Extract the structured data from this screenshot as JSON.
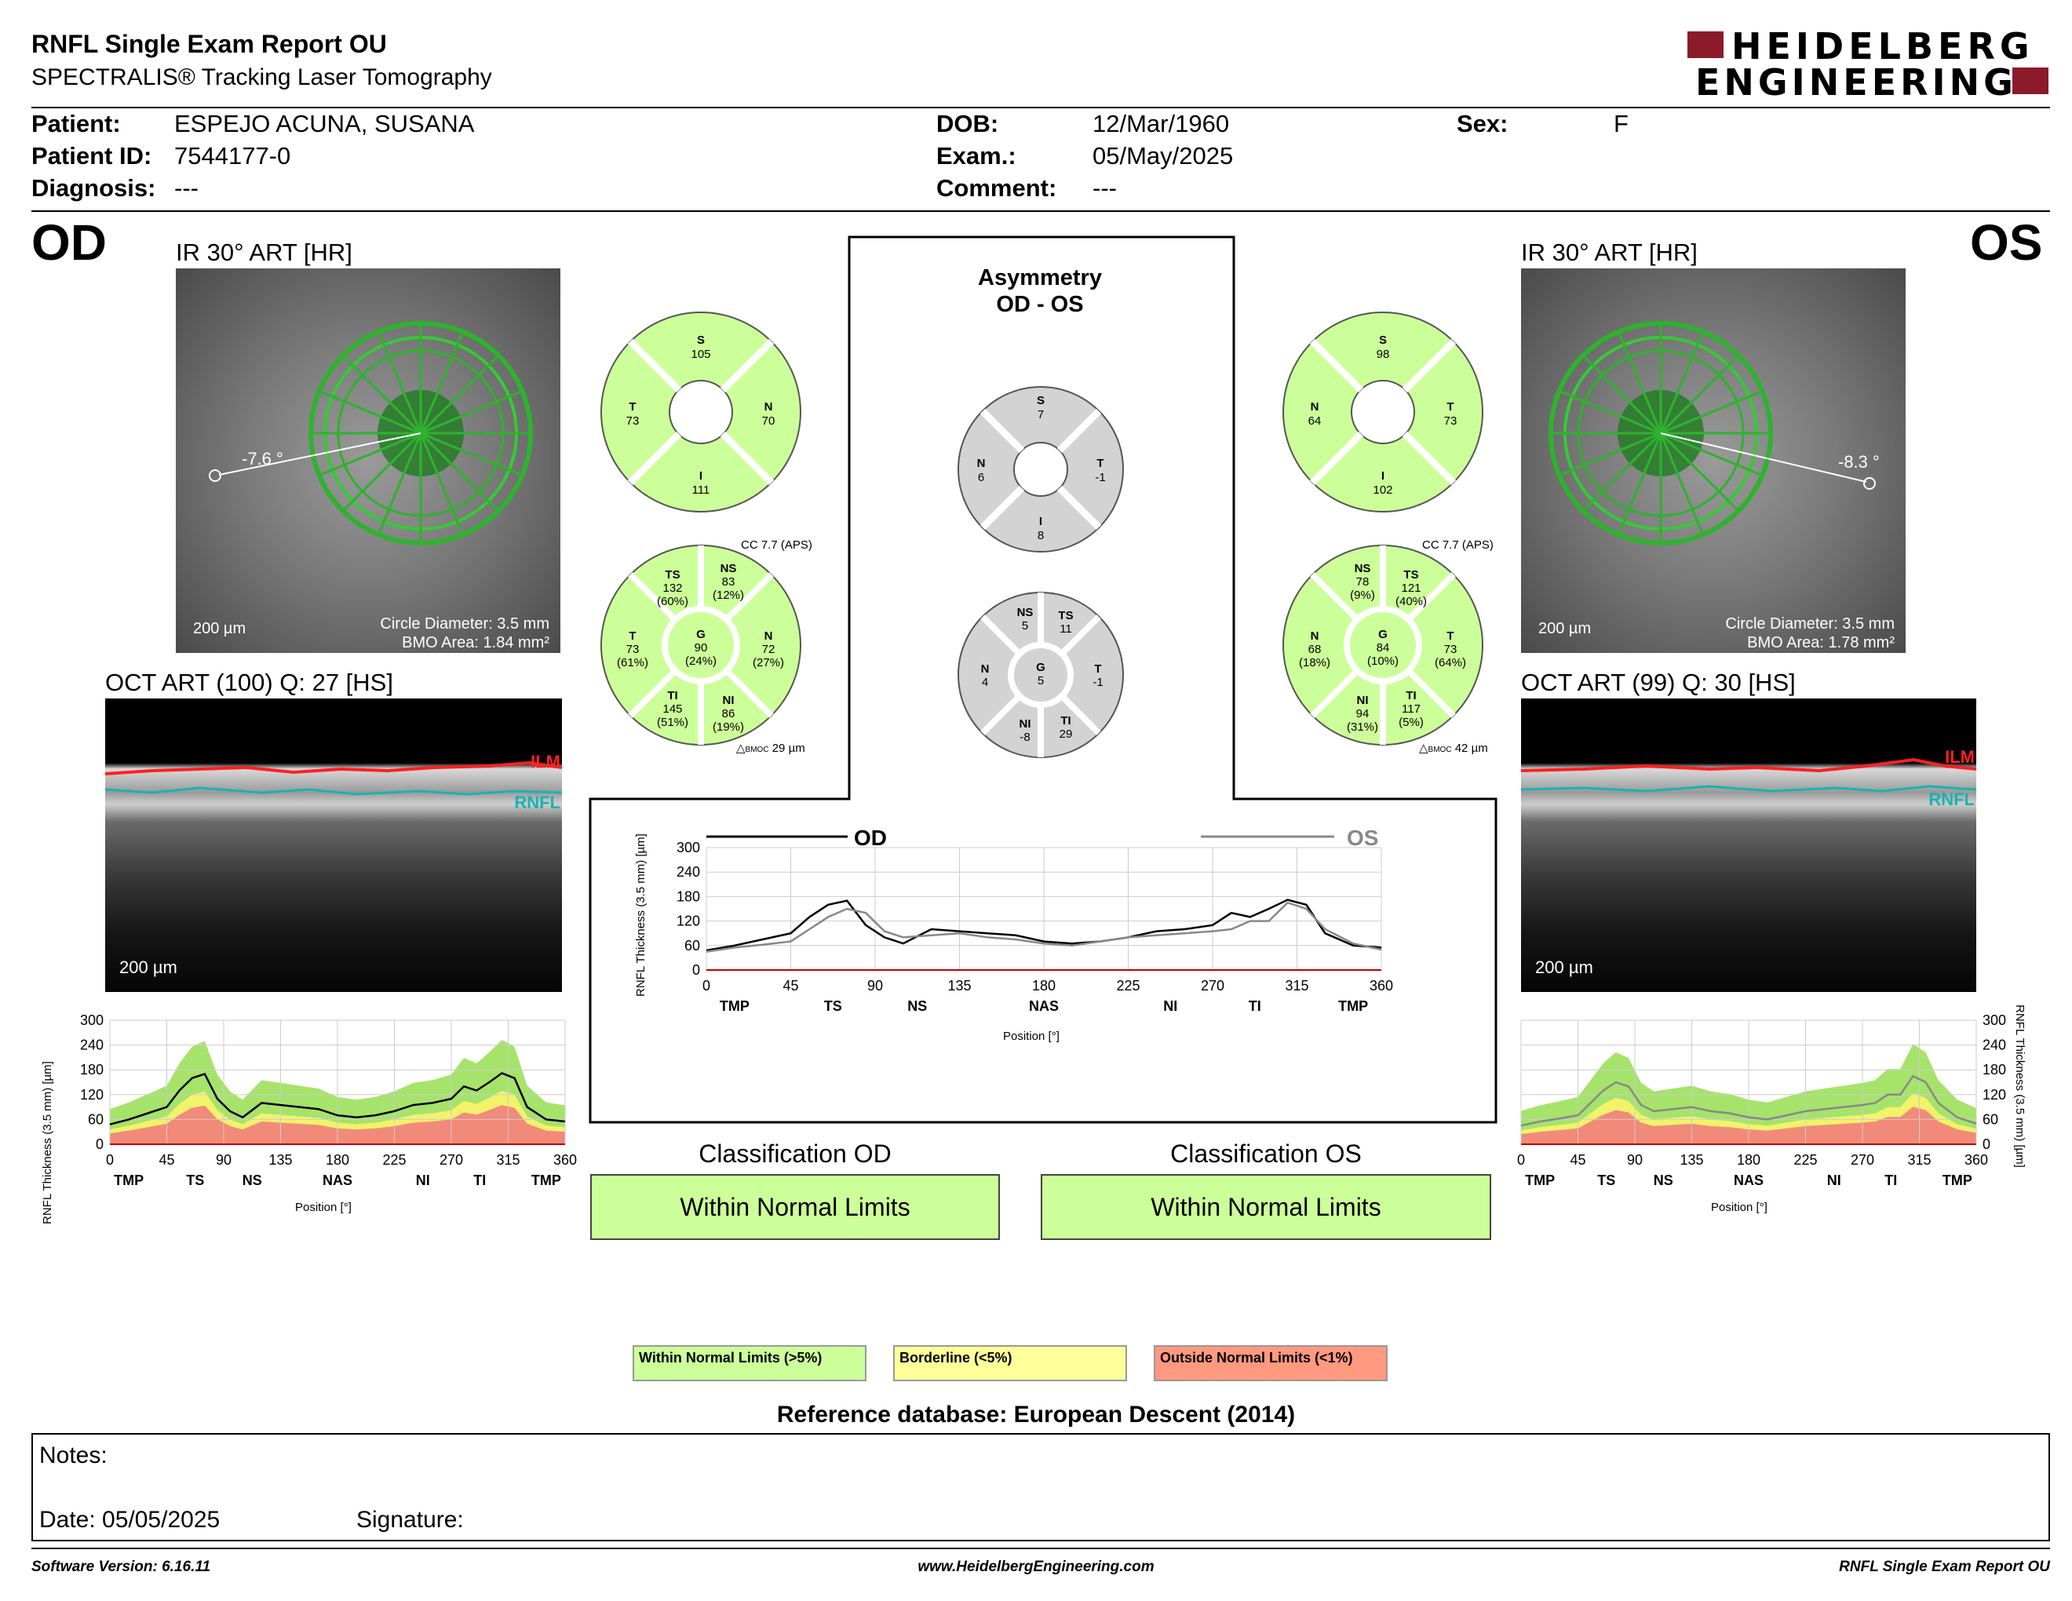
{
  "header": {
    "title": "RNFL Single Exam Report OU",
    "subtitle": "SPECTRALIS® Tracking Laser Tomography",
    "brand_line1": "HEIDELBERG",
    "brand_line2": "ENGINEERING",
    "brand_color": "#8b1a2b"
  },
  "patient": {
    "patient_label": "Patient:",
    "patient_value": "ESPEJO ACUNA, SUSANA",
    "id_label": "Patient ID:",
    "id_value": "7544177-0",
    "diag_label": "Diagnosis:",
    "diag_value": "---",
    "dob_label": "DOB:",
    "dob_value": "12/Mar/1960",
    "exam_label": "Exam.:",
    "exam_value": "05/May/2025",
    "comment_label": "Comment:",
    "comment_value": "---",
    "sex_label": "Sex:",
    "sex_value": "F"
  },
  "od": {
    "eye": "OD",
    "ir_label": "IR 30° ART [HR]",
    "angle": "-7.6 °",
    "scale": "200 µm",
    "circle_diameter": "Circle Diameter: 3.5 mm",
    "bmo_area": "BMO Area: 1.84 mm²",
    "oct_label": "OCT ART (100) Q: 27 [HS]",
    "oct_scale": "200 µm",
    "ilm": "ILM",
    "rnfl": "RNFL",
    "quad": {
      "S": "105",
      "T": "73",
      "N": "70",
      "I": "111"
    },
    "cc": "CC 7.7 (APS)",
    "sector": {
      "TS": [
        "132",
        "(60%)"
      ],
      "NS": [
        "83",
        "(12%)"
      ],
      "T": [
        "73",
        "(61%)"
      ],
      "G": [
        "90",
        "(24%)"
      ],
      "N": [
        "72",
        "(27%)"
      ],
      "TI": [
        "145",
        "(51%)"
      ],
      "NI": [
        "86",
        "(19%)"
      ]
    },
    "bmoc": "29 µm",
    "class_title": "Classification OD",
    "class_value": "Within Normal Limits"
  },
  "os": {
    "eye": "OS",
    "ir_label": "IR 30° ART [HR]",
    "angle": "-8.3 °",
    "scale": "200 µm",
    "circle_diameter": "Circle Diameter: 3.5 mm",
    "bmo_area": "BMO Area: 1.78 mm²",
    "oct_label": "OCT ART (99) Q: 30 [HS]",
    "oct_scale": "200 µm",
    "ilm": "ILM",
    "rnfl": "RNFL",
    "quad": {
      "S": "98",
      "N": "64",
      "T": "73",
      "I": "102"
    },
    "cc": "CC 7.7 (APS)",
    "sector": {
      "NS": [
        "78",
        "(9%)"
      ],
      "TS": [
        "121",
        "(40%)"
      ],
      "N": [
        "68",
        "(18%)"
      ],
      "G": [
        "84",
        "(10%)"
      ],
      "T": [
        "73",
        "(64%)"
      ],
      "NI": [
        "94",
        "(31%)"
      ],
      "TI": [
        "117",
        "(5%)"
      ]
    },
    "bmoc": "42 µm",
    "class_title": "Classification OS",
    "class_value": "Within Normal Limits"
  },
  "asymmetry": {
    "title1": "Asymmetry",
    "title2": "OD - OS",
    "quad": {
      "S": "7",
      "N": "6",
      "T": "-1",
      "I": "8"
    },
    "sector": {
      "NS": "5",
      "TS": "11",
      "N": "4",
      "G": "5",
      "T": "-1",
      "NI": "-8",
      "TI": "29"
    }
  },
  "labels": {
    "S": "S",
    "T": "T",
    "N": "N",
    "I": "I",
    "G": "G",
    "TS": "TS",
    "NS": "NS",
    "TI": "TI",
    "NI": "NI",
    "bmoc": "BMOC"
  },
  "chart_data": [
    {
      "type": "line",
      "xlabel": "Position [°]",
      "ylabel": "RNFL Thickness (3.5 mm) [µm]",
      "xlim": [
        0,
        360
      ],
      "ylim": [
        0,
        300
      ],
      "xticks": [
        "0",
        "45",
        "90",
        "135",
        "180",
        "225",
        "270",
        "315",
        "360"
      ],
      "yticks": [
        "0",
        "60",
        "120",
        "180",
        "240",
        "300"
      ],
      "sector_labels": [
        "TMP",
        "TS",
        "NS",
        "NAS",
        "NI",
        "TI",
        "TMP"
      ],
      "legend": [
        "OD",
        "OS"
      ],
      "x": [
        0,
        15,
        30,
        45,
        55,
        65,
        75,
        85,
        95,
        105,
        120,
        135,
        150,
        165,
        180,
        195,
        210,
        225,
        240,
        255,
        270,
        280,
        290,
        300,
        310,
        320,
        330,
        345,
        360
      ],
      "series": [
        {
          "name": "OD",
          "values": [
            48,
            60,
            75,
            90,
            130,
            160,
            170,
            110,
            80,
            65,
            100,
            95,
            90,
            85,
            70,
            65,
            70,
            80,
            95,
            100,
            110,
            140,
            130,
            150,
            172,
            160,
            90,
            60,
            55
          ]
        },
        {
          "name": "OS",
          "values": [
            45,
            55,
            62,
            70,
            100,
            130,
            150,
            140,
            95,
            80,
            85,
            90,
            80,
            75,
            65,
            60,
            70,
            80,
            85,
            90,
            95,
            100,
            120,
            120,
            165,
            150,
            100,
            65,
            50
          ]
        }
      ]
    },
    {
      "type": "line",
      "xlabel": "Position [°]",
      "ylabel": "RNFL Thickness (3.5 mm) [µm]",
      "xlim": [
        0,
        360
      ],
      "ylim": [
        0,
        300
      ],
      "xticks": [
        "0",
        "45",
        "90",
        "135",
        "180",
        "225",
        "270",
        "315",
        "360"
      ],
      "yticks": [
        "0",
        "60",
        "120",
        "180",
        "240",
        "300"
      ],
      "sector_labels": [
        "TMP",
        "TS",
        "NS",
        "NAS",
        "NI",
        "TI",
        "TMP"
      ],
      "x": [
        0,
        15,
        30,
        45,
        55,
        65,
        75,
        85,
        95,
        105,
        120,
        135,
        150,
        165,
        180,
        195,
        210,
        225,
        240,
        255,
        270,
        280,
        290,
        300,
        310,
        320,
        330,
        345,
        360
      ],
      "series": [
        {
          "name": "OD",
          "values": [
            48,
            60,
            75,
            90,
            130,
            160,
            170,
            110,
            80,
            65,
            100,
            95,
            90,
            85,
            70,
            65,
            70,
            80,
            95,
            100,
            110,
            140,
            130,
            150,
            172,
            160,
            90,
            60,
            55
          ]
        }
      ]
    },
    {
      "type": "line",
      "xlabel": "Position [°]",
      "ylabel": "RNFL Thickness (3.5 mm) [µm]",
      "xlim": [
        0,
        360
      ],
      "ylim": [
        0,
        300
      ],
      "xticks": [
        "0",
        "45",
        "90",
        "135",
        "180",
        "225",
        "270",
        "315",
        "360"
      ],
      "yticks": [
        "0",
        "60",
        "120",
        "180",
        "240",
        "300"
      ],
      "sector_labels": [
        "TMP",
        "TS",
        "NS",
        "NAS",
        "NI",
        "TI",
        "TMP"
      ],
      "x": [
        0,
        15,
        30,
        45,
        55,
        65,
        75,
        85,
        95,
        105,
        120,
        135,
        150,
        165,
        180,
        195,
        210,
        225,
        240,
        255,
        270,
        280,
        290,
        300,
        310,
        320,
        330,
        345,
        360
      ],
      "series": [
        {
          "name": "OS",
          "values": [
            45,
            55,
            62,
            70,
            100,
            130,
            150,
            140,
            95,
            80,
            85,
            90,
            80,
            75,
            65,
            60,
            70,
            80,
            85,
            90,
            95,
            100,
            120,
            120,
            165,
            150,
            100,
            65,
            50
          ]
        }
      ]
    }
  ],
  "legend": {
    "wnl": "Within Normal Limits (>5%)",
    "borderline": "Borderline (<5%)",
    "onl": "Outside Normal Limits (<1%)",
    "wnl_color": "#ccff99",
    "borderline_color": "#ffff99",
    "onl_color": "#ff9980"
  },
  "reference": "Reference database: European Descent (2014)",
  "notes": {
    "notes_label": "Notes:",
    "date_label": "Date: 05/05/2025",
    "signature_label": "Signature:"
  },
  "footer": {
    "software": "Software Version: 6.16.11",
    "website": "www.HeidelbergEngineering.com",
    "report": "RNFL Single Exam Report OU"
  }
}
